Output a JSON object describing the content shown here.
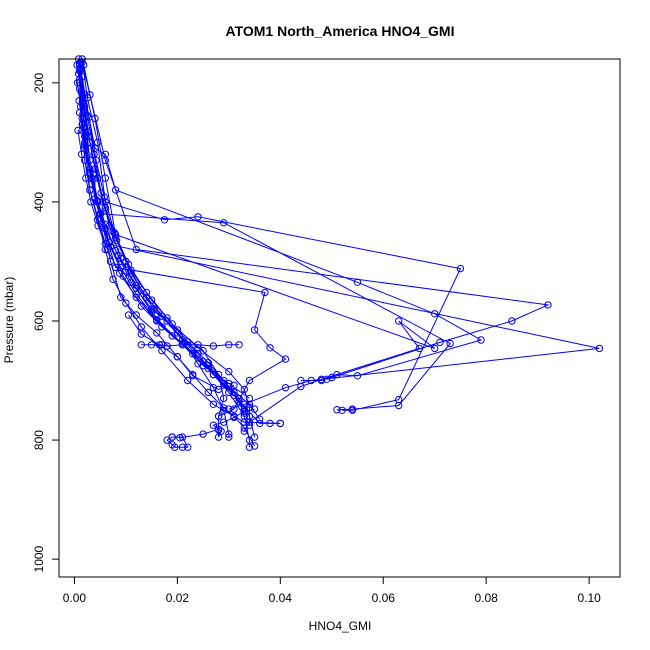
{
  "chart_data": {
    "type": "line",
    "title": "ATOM1 North_America HNO4_GMI",
    "xlabel": "HNO4_GMI",
    "ylabel": "Pressure (mbar)",
    "xlim": [
      -0.003,
      0.106
    ],
    "ylim": [
      1030,
      160
    ],
    "y_reversed": true,
    "x_ticks": [
      "0.00",
      "0.02",
      "0.04",
      "0.06",
      "0.08",
      "0.10"
    ],
    "y_ticks": [
      "200",
      "400",
      "600",
      "800",
      "1000"
    ],
    "series_color": "#0000ff",
    "grid": false,
    "series": [
      {
        "values": [
          [
            0.0008,
            160
          ],
          [
            0.001,
            195
          ],
          [
            0.0012,
            240
          ],
          [
            0.0015,
            280
          ],
          [
            0.002,
            330
          ],
          [
            0.003,
            380
          ],
          [
            0.0045,
            430
          ],
          [
            0.006,
            480
          ],
          [
            0.0075,
            530
          ],
          [
            0.01,
            570
          ],
          [
            0.013,
            610
          ],
          [
            0.017,
            650
          ],
          [
            0.022,
            700
          ],
          [
            0.027,
            740
          ],
          [
            0.033,
            770
          ],
          [
            0.04,
            772
          ]
        ]
      },
      {
        "values": [
          [
            0.0015,
            160
          ],
          [
            0.0025,
            225
          ],
          [
            0.0045,
            300
          ],
          [
            0.006,
            400
          ],
          [
            0.0175,
            430
          ],
          [
            0.024,
            425
          ],
          [
            0.075,
            512
          ],
          [
            0.063,
            732
          ],
          [
            0.054,
            750
          ],
          [
            0.052,
            750
          ]
        ]
      },
      {
        "values": [
          [
            0.001,
            170
          ],
          [
            0.002,
            220
          ],
          [
            0.004,
            310
          ],
          [
            0.006,
            320
          ],
          [
            0.008,
            380
          ],
          [
            0.055,
            535
          ],
          [
            0.07,
            588
          ],
          [
            0.079,
            632
          ],
          [
            0.055,
            692
          ],
          [
            0.051,
            690
          ],
          [
            0.048,
            700
          ],
          [
            0.044,
            700
          ]
        ]
      },
      {
        "values": [
          [
            0.0012,
            165
          ],
          [
            0.002,
            250
          ],
          [
            0.003,
            330
          ],
          [
            0.005,
            420
          ],
          [
            0.029,
            435
          ],
          [
            0.073,
            638
          ],
          [
            0.063,
            742
          ],
          [
            0.054,
            748
          ],
          [
            0.051,
            749
          ]
        ]
      },
      {
        "values": [
          [
            0.0018,
            170
          ],
          [
            0.004,
            260
          ],
          [
            0.006,
            360
          ],
          [
            0.008,
            455
          ],
          [
            0.07,
            646
          ],
          [
            0.063,
            600
          ],
          [
            0.067,
            646
          ],
          [
            0.048,
            698
          ],
          [
            0.044,
            710
          ],
          [
            0.034,
            770
          ],
          [
            0.033,
            785
          ]
        ]
      },
      {
        "values": [
          [
            0.001,
            180
          ],
          [
            0.0015,
            270
          ],
          [
            0.003,
            380
          ],
          [
            0.006,
            470
          ],
          [
            0.102,
            646
          ],
          [
            0.046,
            700
          ],
          [
            0.041,
            712
          ],
          [
            0.033,
            740
          ],
          [
            0.03,
            748
          ]
        ]
      },
      {
        "values": [
          [
            0.0012,
            175
          ],
          [
            0.002,
            290
          ],
          [
            0.004,
            395
          ],
          [
            0.008,
            510
          ],
          [
            0.037,
            552
          ],
          [
            0.035,
            615
          ],
          [
            0.038,
            645
          ],
          [
            0.041,
            664
          ],
          [
            0.034,
            700
          ],
          [
            0.031,
            748
          ],
          [
            0.028,
            760
          ]
        ]
      },
      {
        "values": [
          [
            0.0015,
            165
          ],
          [
            0.003,
            220
          ],
          [
            0.006,
            330
          ],
          [
            0.012,
            480
          ],
          [
            0.092,
            573
          ],
          [
            0.085,
            600
          ],
          [
            0.071,
            636
          ],
          [
            0.05,
            695
          ],
          [
            0.049,
            698
          ]
        ]
      },
      {
        "values": [
          [
            0.0005,
            170
          ],
          [
            0.001,
            200
          ],
          [
            0.0015,
            260
          ],
          [
            0.002,
            310
          ],
          [
            0.003,
            350
          ],
          [
            0.005,
            420
          ],
          [
            0.007,
            500
          ],
          [
            0.009,
            560
          ],
          [
            0.012,
            590
          ],
          [
            0.016,
            620
          ],
          [
            0.02,
            660
          ],
          [
            0.023,
            690
          ],
          [
            0.026,
            720
          ],
          [
            0.029,
            746
          ],
          [
            0.031,
            760
          ],
          [
            0.033,
            780
          ],
          [
            0.035,
            810
          ]
        ]
      },
      {
        "values": [
          [
            0.001,
            168
          ],
          [
            0.002,
            240
          ],
          [
            0.003,
            300
          ],
          [
            0.0045,
            360
          ],
          [
            0.006,
            410
          ],
          [
            0.008,
            460
          ],
          [
            0.011,
            520
          ],
          [
            0.014,
            560
          ],
          [
            0.018,
            600
          ],
          [
            0.022,
            640
          ],
          [
            0.026,
            680
          ],
          [
            0.03,
            720
          ],
          [
            0.033,
            760
          ],
          [
            0.034,
            800
          ],
          [
            0.034,
            812
          ]
        ]
      },
      {
        "values": [
          [
            0.0008,
            185
          ],
          [
            0.0018,
            235
          ],
          [
            0.0028,
            290
          ],
          [
            0.004,
            345
          ],
          [
            0.0055,
            400
          ],
          [
            0.0075,
            450
          ],
          [
            0.01,
            500
          ],
          [
            0.013,
            548
          ],
          [
            0.017,
            592
          ],
          [
            0.021,
            632
          ],
          [
            0.024,
            672
          ],
          [
            0.027,
            712
          ],
          [
            0.029,
            750
          ],
          [
            0.03,
            790
          ],
          [
            0.03,
            795
          ]
        ]
      },
      {
        "values": [
          [
            0.0012,
            178
          ],
          [
            0.0025,
            255
          ],
          [
            0.0038,
            320
          ],
          [
            0.0052,
            385
          ],
          [
            0.0068,
            440
          ],
          [
            0.009,
            495
          ],
          [
            0.012,
            545
          ],
          [
            0.015,
            585
          ],
          [
            0.019,
            625
          ],
          [
            0.023,
            655
          ],
          [
            0.027,
            690
          ],
          [
            0.031,
            725
          ],
          [
            0.036,
            772
          ],
          [
            0.038,
            772
          ],
          [
            0.04,
            772
          ]
        ]
      },
      {
        "values": [
          [
            0.0006,
            200
          ],
          [
            0.0016,
            268
          ],
          [
            0.003,
            345
          ],
          [
            0.0045,
            398
          ],
          [
            0.006,
            438
          ],
          [
            0.008,
            482
          ],
          [
            0.011,
            535
          ],
          [
            0.015,
            580
          ],
          [
            0.02,
            615
          ],
          [
            0.025,
            650
          ],
          [
            0.028,
            690
          ],
          [
            0.029,
            730
          ],
          [
            0.028,
            760
          ],
          [
            0.028,
            783
          ]
        ]
      },
      {
        "values": [
          [
            0.001,
            210
          ],
          [
            0.0022,
            288
          ],
          [
            0.0036,
            362
          ],
          [
            0.0051,
            420
          ],
          [
            0.007,
            475
          ],
          [
            0.0095,
            525
          ],
          [
            0.013,
            575
          ],
          [
            0.017,
            610
          ],
          [
            0.021,
            640
          ],
          [
            0.025,
            668
          ],
          [
            0.029,
            705
          ],
          [
            0.032,
            735
          ],
          [
            0.033,
            748
          ]
        ]
      },
      {
        "values": [
          [
            0.0015,
            190
          ],
          [
            0.0028,
            258
          ],
          [
            0.0042,
            330
          ],
          [
            0.0058,
            392
          ],
          [
            0.0078,
            452
          ],
          [
            0.0105,
            505
          ],
          [
            0.014,
            552
          ],
          [
            0.018,
            595
          ],
          [
            0.022,
            635
          ],
          [
            0.026,
            670
          ],
          [
            0.029,
            700
          ],
          [
            0.032,
            730
          ],
          [
            0.034,
            760
          ],
          [
            0.035,
            795
          ]
        ]
      },
      {
        "values": [
          [
            0.0009,
            230
          ],
          [
            0.002,
            300
          ],
          [
            0.0034,
            370
          ],
          [
            0.005,
            428
          ],
          [
            0.0068,
            468
          ],
          [
            0.009,
            510
          ],
          [
            0.012,
            555
          ],
          [
            0.016,
            598
          ],
          [
            0.021,
            638
          ],
          [
            0.026,
            675
          ],
          [
            0.03,
            710
          ],
          [
            0.034,
            740
          ],
          [
            0.036,
            765
          ]
        ]
      },
      {
        "values": [
          [
            0.0013,
            215
          ],
          [
            0.0026,
            283
          ],
          [
            0.0042,
            352
          ],
          [
            0.006,
            415
          ],
          [
            0.0082,
            465
          ],
          [
            0.011,
            515
          ],
          [
            0.015,
            565
          ],
          [
            0.019,
            605
          ],
          [
            0.024,
            645
          ],
          [
            0.03,
            685
          ],
          [
            0.033,
            715
          ],
          [
            0.034,
            745
          ],
          [
            0.034,
            775
          ]
        ]
      },
      {
        "values": [
          [
            0.0007,
            280
          ],
          [
            0.0014,
            320
          ],
          [
            0.0022,
            360
          ],
          [
            0.0032,
            400
          ],
          [
            0.0046,
            440
          ],
          [
            0.0064,
            480
          ],
          [
            0.0088,
            520
          ],
          [
            0.012,
            560
          ],
          [
            0.016,
            600
          ],
          [
            0.021,
            640
          ],
          [
            0.025,
            675
          ],
          [
            0.03,
            705
          ],
          [
            0.034,
            730
          ]
        ]
      },
      {
        "values": [
          [
            0.001,
            250
          ],
          [
            0.002,
            305
          ],
          [
            0.003,
            352
          ],
          [
            0.0045,
            400
          ],
          [
            0.006,
            445
          ],
          [
            0.0085,
            490
          ],
          [
            0.012,
            540
          ],
          [
            0.0155,
            580
          ],
          [
            0.02,
            620
          ],
          [
            0.024,
            655
          ],
          [
            0.027,
            690
          ],
          [
            0.031,
            720
          ],
          [
            0.033,
            755
          ]
        ]
      },
      {
        "values": [
          [
            0.019,
            795
          ],
          [
            0.018,
            800
          ],
          [
            0.019,
            808
          ],
          [
            0.0195,
            812
          ],
          [
            0.021,
            812
          ],
          [
            0.022,
            812
          ],
          [
            0.021,
            795
          ],
          [
            0.019,
            795
          ]
        ]
      },
      {
        "values": [
          [
            0.0205,
            796
          ],
          [
            0.025,
            790
          ],
          [
            0.028,
            782
          ],
          [
            0.028,
            795
          ],
          [
            0.0285,
            785
          ],
          [
            0.027,
            775
          ],
          [
            0.029,
            770
          ],
          [
            0.031,
            762
          ],
          [
            0.033,
            752
          ],
          [
            0.035,
            748
          ]
        ]
      },
      {
        "values": [
          [
            0.017,
            640
          ],
          [
            0.013,
            640
          ],
          [
            0.015,
            640
          ],
          [
            0.018,
            642
          ],
          [
            0.021,
            640
          ],
          [
            0.024,
            640
          ],
          [
            0.027,
            642
          ],
          [
            0.03,
            640
          ],
          [
            0.032,
            640
          ]
        ]
      },
      {
        "values": [
          [
            0.0105,
            590
          ],
          [
            0.013,
            622
          ],
          [
            0.0165,
            640
          ],
          [
            0.02,
            660
          ],
          [
            0.023,
            692
          ],
          [
            0.028,
            715
          ],
          [
            0.031,
            708
          ]
        ]
      }
    ]
  }
}
